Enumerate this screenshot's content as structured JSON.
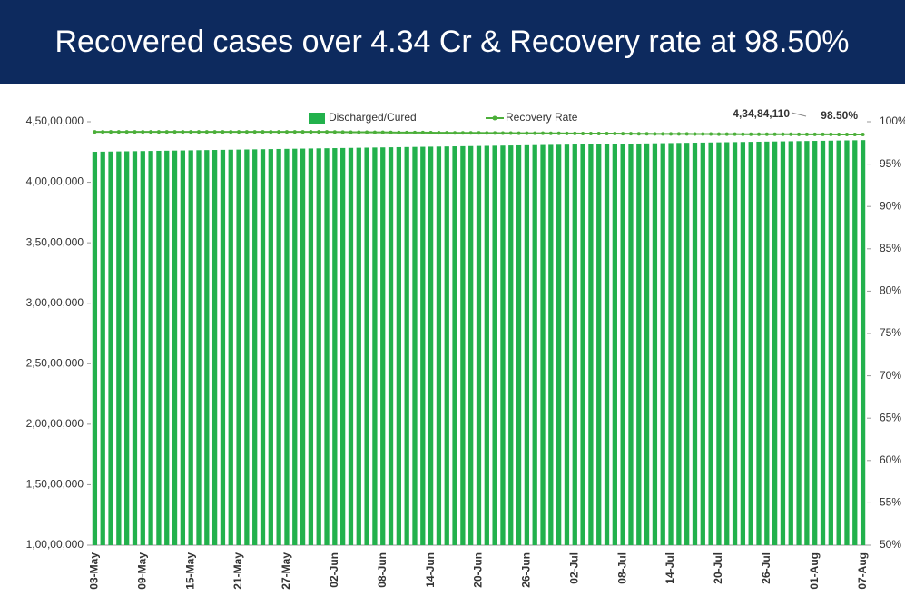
{
  "chart_data": {
    "type": "bar_line",
    "title": "Recovered cases over 4.34 Cr & Recovery rate at 98.50%",
    "categories": [
      "03-May",
      null,
      null,
      null,
      null,
      null,
      "09-May",
      null,
      null,
      null,
      null,
      null,
      "15-May",
      null,
      null,
      null,
      null,
      null,
      "21-May",
      null,
      null,
      null,
      null,
      null,
      "27-May",
      null,
      null,
      null,
      null,
      null,
      "02-Jun",
      null,
      null,
      null,
      null,
      null,
      "08-Jun",
      null,
      null,
      null,
      null,
      null,
      "14-Jun",
      null,
      null,
      null,
      null,
      null,
      "20-Jun",
      null,
      null,
      null,
      null,
      null,
      "26-Jun",
      null,
      null,
      null,
      null,
      null,
      "02-Jul",
      null,
      null,
      null,
      null,
      null,
      "08-Jul",
      null,
      null,
      null,
      null,
      null,
      "14-Jul",
      null,
      null,
      null,
      null,
      null,
      "20-Jul",
      null,
      null,
      null,
      null,
      null,
      "26-Jul",
      null,
      null,
      null,
      null,
      null,
      "01-Aug",
      null,
      null,
      null,
      null,
      null,
      "07-Aug"
    ],
    "series": [
      {
        "name": "Discharged/Cured",
        "type": "bar",
        "color": "#22b14c",
        "values": [
          42520000,
          42530000,
          42540000,
          42550000,
          42560000,
          42570000,
          42580000,
          42590000,
          42600000,
          42610000,
          42620000,
          42630000,
          42640000,
          42650000,
          42660000,
          42670000,
          42680000,
          42690000,
          42700000,
          42710000,
          42720000,
          42730000,
          42740000,
          42750000,
          42760000,
          42770000,
          42780000,
          42790000,
          42800000,
          42810000,
          42820000,
          42830000,
          42840000,
          42850000,
          42860000,
          42870000,
          42880000,
          42890000,
          42900000,
          42910000,
          42920000,
          42930000,
          42940000,
          42950000,
          42960000,
          42970000,
          42980000,
          42990000,
          43000000,
          43010000,
          43020000,
          43030000,
          43040000,
          43050000,
          43060000,
          43070000,
          43080000,
          43090000,
          43100000,
          43110000,
          43120000,
          43130000,
          43140000,
          43150000,
          43160000,
          43170000,
          43180000,
          43190000,
          43200000,
          43210000,
          43220000,
          43230000,
          43240000,
          43250000,
          43260000,
          43270000,
          43280000,
          43290000,
          43300000,
          43310000,
          43320000,
          43330000,
          43340000,
          43350000,
          43360000,
          43370000,
          43380000,
          43390000,
          43400000,
          43410000,
          43420000,
          43430000,
          43440000,
          43450000,
          43460000,
          43470000,
          43484110
        ],
        "value_labels": [
          null,
          null,
          null,
          null,
          null,
          null,
          null,
          null,
          null,
          null,
          null,
          null,
          null,
          null,
          null,
          null,
          null,
          null,
          null,
          null,
          null,
          null,
          null,
          null,
          null,
          null,
          null,
          null,
          null,
          null,
          null,
          null,
          null,
          null,
          null,
          null,
          null,
          null,
          null,
          null,
          null,
          null,
          null,
          null,
          null,
          null,
          null,
          null,
          null,
          null,
          null,
          null,
          null,
          null,
          null,
          null,
          null,
          null,
          null,
          null,
          null,
          null,
          null,
          null,
          null,
          null,
          null,
          null,
          null,
          null,
          null,
          null,
          null,
          null,
          null,
          null,
          null,
          null,
          null,
          null,
          null,
          null,
          null,
          null,
          null,
          null,
          null,
          null,
          null,
          null,
          null,
          null,
          null,
          null,
          null,
          null,
          "4,34,84,110"
        ]
      },
      {
        "name": "Recovery Rate",
        "type": "line",
        "axis": "y2",
        "color": "#4caf3a",
        "values": [
          98.8,
          98.8,
          98.8,
          98.8,
          98.8,
          98.8,
          98.8,
          98.8,
          98.8,
          98.8,
          98.8,
          98.8,
          98.8,
          98.8,
          98.8,
          98.8,
          98.8,
          98.8,
          98.8,
          98.8,
          98.8,
          98.8,
          98.8,
          98.8,
          98.8,
          98.8,
          98.8,
          98.8,
          98.8,
          98.8,
          98.79,
          98.78,
          98.77,
          98.77,
          98.76,
          98.75,
          98.75,
          98.74,
          98.73,
          98.73,
          98.72,
          98.72,
          98.71,
          98.7,
          98.7,
          98.69,
          98.69,
          98.68,
          98.68,
          98.67,
          98.67,
          98.66,
          98.66,
          98.65,
          98.65,
          98.64,
          98.64,
          98.63,
          98.63,
          98.62,
          98.62,
          98.61,
          98.61,
          98.6,
          98.6,
          98.6,
          98.59,
          98.59,
          98.58,
          98.58,
          98.57,
          98.57,
          98.56,
          98.56,
          98.56,
          98.55,
          98.55,
          98.55,
          98.54,
          98.54,
          98.54,
          98.53,
          98.53,
          98.53,
          98.52,
          98.52,
          98.52,
          98.52,
          98.51,
          98.51,
          98.51,
          98.51,
          98.51,
          98.5,
          98.5,
          98.5,
          98.5
        ],
        "value_labels": [
          null,
          null,
          null,
          null,
          null,
          null,
          null,
          null,
          null,
          null,
          null,
          null,
          null,
          null,
          null,
          null,
          null,
          null,
          null,
          null,
          null,
          null,
          null,
          null,
          null,
          null,
          null,
          null,
          null,
          null,
          null,
          null,
          null,
          null,
          null,
          null,
          null,
          null,
          null,
          null,
          null,
          null,
          null,
          null,
          null,
          null,
          null,
          null,
          null,
          null,
          null,
          null,
          null,
          null,
          null,
          null,
          null,
          null,
          null,
          null,
          null,
          null,
          null,
          null,
          null,
          null,
          null,
          null,
          null,
          null,
          null,
          null,
          null,
          null,
          null,
          null,
          null,
          null,
          null,
          null,
          null,
          null,
          null,
          null,
          null,
          null,
          null,
          null,
          null,
          null,
          null,
          null,
          null,
          null,
          null,
          null,
          "98.50%"
        ]
      }
    ],
    "ylim": [
      10000000,
      45000000
    ],
    "yticks": [
      {
        "value": 10000000,
        "label": "1,00,00,000"
      },
      {
        "value": 15000000,
        "label": "1,50,00,000"
      },
      {
        "value": 20000000,
        "label": "2,00,00,000"
      },
      {
        "value": 25000000,
        "label": "2,50,00,000"
      },
      {
        "value": 30000000,
        "label": "3,00,00,000"
      },
      {
        "value": 35000000,
        "label": "3,50,00,000"
      },
      {
        "value": 40000000,
        "label": "4,00,00,000"
      },
      {
        "value": 45000000,
        "label": "4,50,00,000"
      }
    ],
    "y2lim": [
      50,
      100
    ],
    "y2ticks": [
      {
        "value": 50,
        "label": "50%"
      },
      {
        "value": 55,
        "label": "55%"
      },
      {
        "value": 60,
        "label": "60%"
      },
      {
        "value": 65,
        "label": "65%"
      },
      {
        "value": 70,
        "label": "70%"
      },
      {
        "value": 75,
        "label": "75%"
      },
      {
        "value": 80,
        "label": "80%"
      },
      {
        "value": 85,
        "label": "85%"
      },
      {
        "value": 90,
        "label": "90%"
      },
      {
        "value": 95,
        "label": "95%"
      },
      {
        "value": 100,
        "label": "100%"
      }
    ],
    "grid": false,
    "legend": "top"
  }
}
